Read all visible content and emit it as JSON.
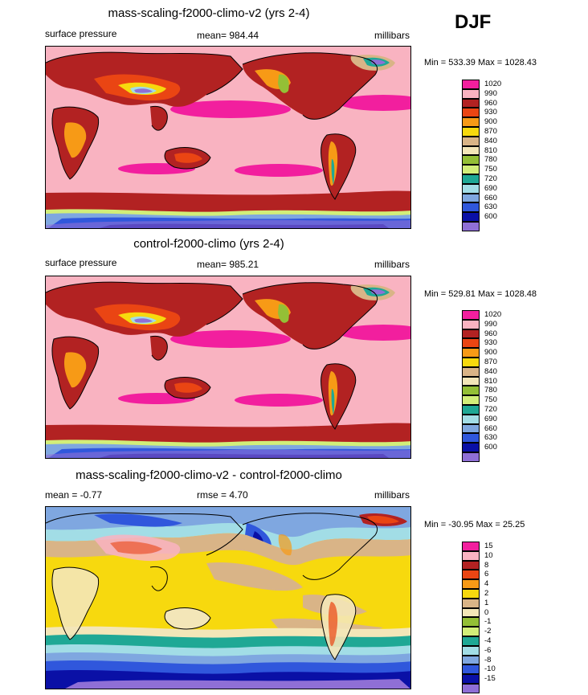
{
  "season": "DJF",
  "panels": [
    {
      "title": "mass-scaling-f2000-climo-v2 (yrs 2-4)",
      "left_label": "surface pressure",
      "center_label": "mean= 984.44",
      "units": "millibars",
      "min_max": "Min = 533.39 Max = 1028.43",
      "legend": [
        {
          "label": "1020",
          "color": "#f21f9e"
        },
        {
          "label": "990",
          "color": "#f9b3c1"
        },
        {
          "label": "960",
          "color": "#b22222"
        },
        {
          "label": "930",
          "color": "#ea4513"
        },
        {
          "label": "900",
          "color": "#f79a16"
        },
        {
          "label": "870",
          "color": "#f7d90e"
        },
        {
          "label": "840",
          "color": "#d9b487"
        },
        {
          "label": "810",
          "color": "#f3e6b8"
        },
        {
          "label": "780",
          "color": "#94bf36"
        },
        {
          "label": "750",
          "color": "#d2ee79"
        },
        {
          "label": "720",
          "color": "#1fa895"
        },
        {
          "label": "690",
          "color": "#a2dde6"
        },
        {
          "label": "660",
          "color": "#7fa7e0"
        },
        {
          "label": "630",
          "color": "#3057dc"
        },
        {
          "label": "600",
          "color": "#0a10a6"
        },
        {
          "label": "",
          "color": "#8f6fd6"
        }
      ]
    },
    {
      "title": "control-f2000-climo (yrs 2-4)",
      "left_label": "surface pressure",
      "center_label": "mean= 985.21",
      "units": "millibars",
      "min_max": "Min = 529.81 Max = 1028.48",
      "legend": [
        {
          "label": "1020",
          "color": "#f21f9e"
        },
        {
          "label": "990",
          "color": "#f9b3c1"
        },
        {
          "label": "960",
          "color": "#b22222"
        },
        {
          "label": "930",
          "color": "#ea4513"
        },
        {
          "label": "900",
          "color": "#f79a16"
        },
        {
          "label": "870",
          "color": "#f7d90e"
        },
        {
          "label": "840",
          "color": "#d9b487"
        },
        {
          "label": "810",
          "color": "#f3e6b8"
        },
        {
          "label": "780",
          "color": "#94bf36"
        },
        {
          "label": "750",
          "color": "#d2ee79"
        },
        {
          "label": "720",
          "color": "#1fa895"
        },
        {
          "label": "690",
          "color": "#a2dde6"
        },
        {
          "label": "660",
          "color": "#7fa7e0"
        },
        {
          "label": "630",
          "color": "#3057dc"
        },
        {
          "label": "600",
          "color": "#0a10a6"
        },
        {
          "label": "",
          "color": "#8f6fd6"
        }
      ]
    },
    {
      "title": "mass-scaling-f2000-climo-v2 - control-f2000-climo",
      "left_label": "mean =  -0.77",
      "center_label": "rmse =   4.70",
      "units": "millibars",
      "min_max": "Min = -30.95 Max =  25.25",
      "legend": [
        {
          "label": "15",
          "color": "#f21f9e"
        },
        {
          "label": "10",
          "color": "#f9b3c1"
        },
        {
          "label": "8",
          "color": "#b22222"
        },
        {
          "label": "6",
          "color": "#ea4513"
        },
        {
          "label": "4",
          "color": "#f79a16"
        },
        {
          "label": "2",
          "color": "#f7d90e"
        },
        {
          "label": "1",
          "color": "#d9b487"
        },
        {
          "label": "0",
          "color": "#f3e6b8"
        },
        {
          "label": "-1",
          "color": "#94bf36"
        },
        {
          "label": "-2",
          "color": "#d2ee79"
        },
        {
          "label": "-4",
          "color": "#1fa895"
        },
        {
          "label": "-6",
          "color": "#a2dde6"
        },
        {
          "label": "-8",
          "color": "#7fa7e0"
        },
        {
          "label": "-10",
          "color": "#3057dc"
        },
        {
          "label": "-15",
          "color": "#0a10a6"
        },
        {
          "label": "",
          "color": "#8f6fd6"
        }
      ]
    }
  ]
}
